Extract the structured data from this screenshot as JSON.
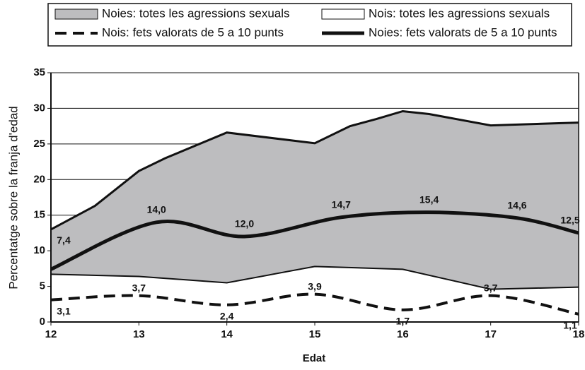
{
  "chart_data": {
    "type": "line",
    "xlabel": "Edat",
    "ylabel": "Percentatge sobre la franja d'edad",
    "xlim": [
      12,
      18
    ],
    "xticks": [
      12,
      13,
      14,
      15,
      16,
      17,
      18
    ],
    "ylim": [
      0,
      35
    ],
    "yticks": [
      0,
      5,
      10,
      15,
      20,
      25,
      30,
      35
    ],
    "grid": true,
    "series": [
      {
        "name": "Noies: totes les agressions sexuals",
        "color": "#bdbdbf",
        "style": "area",
        "x": [
          12,
          12.5,
          13,
          13.3,
          14,
          15,
          15.4,
          15.7,
          16,
          16.3,
          17,
          18
        ],
        "values": [
          13,
          16.3,
          21.2,
          23,
          26.6,
          25.1,
          27.5,
          28.5,
          29.6,
          29.2,
          27.6,
          28
        ]
      },
      {
        "name": "Nois: totes les agressions sexuals",
        "color": "#ffffff",
        "style": "area",
        "x": [
          12,
          13,
          14,
          15,
          16,
          17,
          18
        ],
        "values": [
          6.7,
          6.4,
          5.5,
          7.8,
          7.4,
          4.6,
          4.9
        ]
      },
      {
        "name": "Nois: fets valorats de 5 a 10 punts",
        "color": "#111111",
        "style": "dashed",
        "x": [
          12,
          13,
          14,
          15,
          16,
          17,
          18
        ],
        "values": [
          3.1,
          3.7,
          2.4,
          3.9,
          1.7,
          3.7,
          1.1
        ],
        "value_labels": [
          "3,1",
          "3,7",
          "2,4",
          "3,9",
          "1,7",
          "3,7",
          "1,1"
        ]
      },
      {
        "name": "Noies: fets valorats de 5 a 10 punts",
        "color": "#111111",
        "style": "solid",
        "x": [
          12,
          13.2,
          14.2,
          15.3,
          16.3,
          17.3,
          18
        ],
        "values": [
          7.4,
          14,
          12,
          14.7,
          15.4,
          14.6,
          12.5
        ],
        "value_labels": [
          "7,4",
          "14,0",
          "12,0",
          "14,7",
          "15,4",
          "14,6",
          "12,5"
        ]
      }
    ]
  }
}
